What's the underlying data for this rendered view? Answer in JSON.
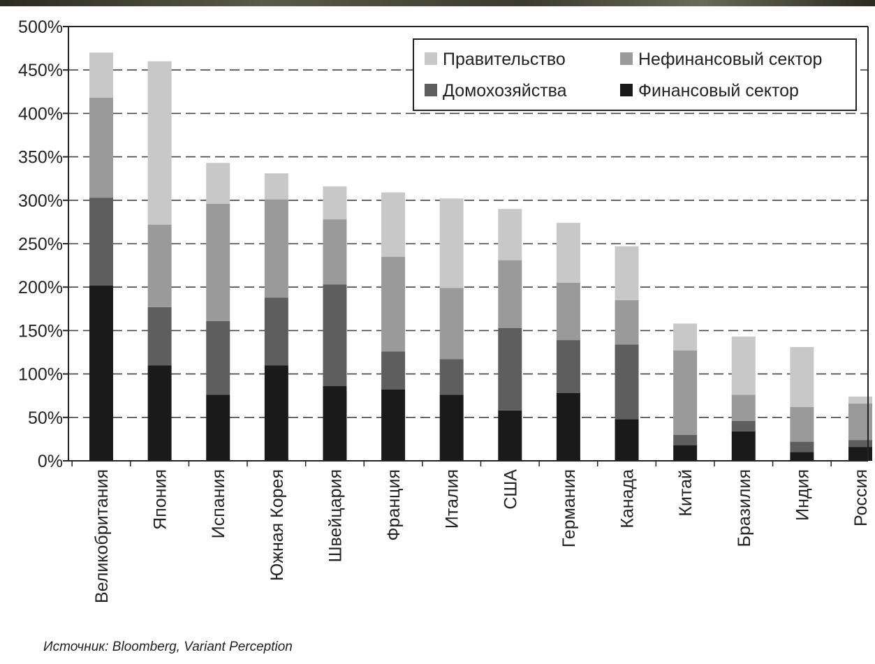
{
  "chart_data": {
    "type": "bar",
    "stacked": true,
    "categories": [
      "Великобритания",
      "Япония",
      "Испания",
      "Южная Корея",
      "Швейцария",
      "Франция",
      "Италия",
      "США",
      "Германия",
      "Канада",
      "Китай",
      "Бразилия",
      "Индия",
      "Россия"
    ],
    "series": [
      {
        "name": "Финансовый сектор",
        "color": "#1a1a1a",
        "values": [
          202,
          110,
          76,
          110,
          86,
          82,
          76,
          58,
          78,
          48,
          18,
          34,
          10,
          16
        ]
      },
      {
        "name": "Домохозяйства",
        "color": "#5e5e5e",
        "values": [
          101,
          67,
          85,
          78,
          117,
          44,
          41,
          95,
          61,
          86,
          12,
          12,
          12,
          8
        ]
      },
      {
        "name": "Нефинансовый сектор",
        "color": "#9a9a9a",
        "values": [
          115,
          95,
          135,
          113,
          75,
          109,
          82,
          78,
          66,
          51,
          97,
          30,
          40,
          42
        ]
      },
      {
        "name": "Правительство",
        "color": "#c8c8c8",
        "values": [
          52,
          188,
          47,
          30,
          38,
          74,
          103,
          59,
          69,
          62,
          31,
          67,
          69,
          8
        ]
      }
    ],
    "yticks": [
      "0%",
      "50%",
      "100%",
      "150%",
      "200%",
      "250%",
      "300%",
      "350%",
      "400%",
      "450%",
      "500%"
    ],
    "ylim": [
      0,
      500
    ],
    "grid": "dashed horizontal",
    "legend_position": "top-right",
    "legend_order": [
      "Правительство",
      "Нефинансовый сектор",
      "Домохозяйства",
      "Финансовый сектор"
    ]
  },
  "source": "Источник: Bloomberg, Variant Perception"
}
